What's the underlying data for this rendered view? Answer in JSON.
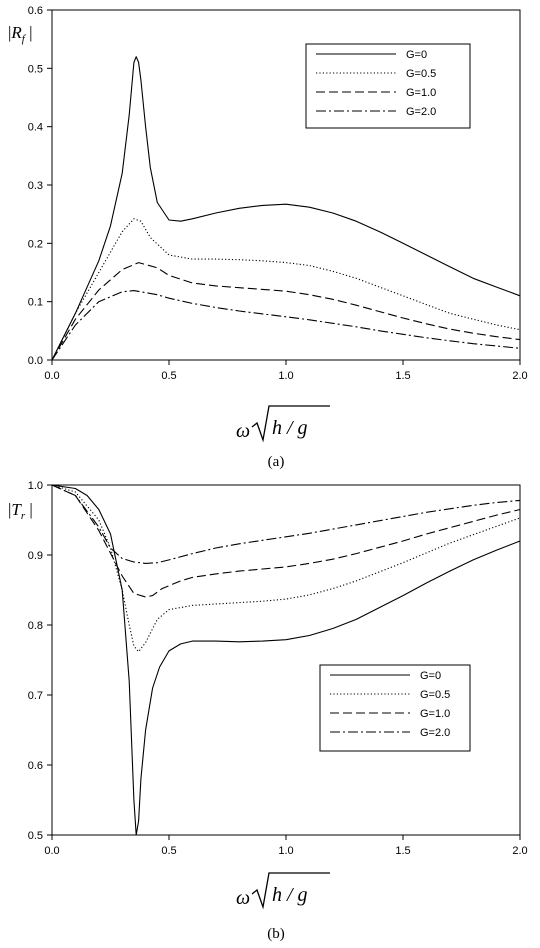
{
  "chart_data": [
    {
      "type": "line",
      "panel_caption": "(a)",
      "ylabel": "|R_f|",
      "xlabel": "ω√(h/g)",
      "xlim": [
        0.0,
        2.0
      ],
      "ylim": [
        0.0,
        0.6
      ],
      "xticks": [
        "0.0",
        "0.5",
        "1.0",
        "1.5",
        "2.0"
      ],
      "yticks": [
        "0.0",
        "0.1",
        "0.2",
        "0.3",
        "0.4",
        "0.5",
        "0.6"
      ],
      "legend_position": "top-right",
      "grid": false,
      "series": [
        {
          "name": "G=0",
          "style": "solid",
          "x": [
            0.0,
            0.1,
            0.2,
            0.25,
            0.3,
            0.33,
            0.35,
            0.36,
            0.37,
            0.38,
            0.4,
            0.42,
            0.45,
            0.5,
            0.55,
            0.6,
            0.7,
            0.8,
            0.9,
            1.0,
            1.1,
            1.2,
            1.3,
            1.4,
            1.5,
            1.6,
            1.7,
            1.8,
            1.9,
            2.0
          ],
          "y": [
            0.0,
            0.08,
            0.17,
            0.23,
            0.32,
            0.42,
            0.51,
            0.52,
            0.51,
            0.48,
            0.4,
            0.33,
            0.27,
            0.24,
            0.238,
            0.242,
            0.252,
            0.26,
            0.265,
            0.267,
            0.262,
            0.252,
            0.238,
            0.22,
            0.2,
            0.18,
            0.16,
            0.14,
            0.125,
            0.11
          ]
        },
        {
          "name": "G=0.5",
          "style": "dotted",
          "x": [
            0.0,
            0.1,
            0.2,
            0.3,
            0.35,
            0.38,
            0.42,
            0.5,
            0.6,
            0.7,
            0.8,
            0.9,
            1.0,
            1.1,
            1.2,
            1.3,
            1.4,
            1.5,
            1.6,
            1.7,
            1.8,
            1.9,
            2.0
          ],
          "y": [
            0.0,
            0.08,
            0.15,
            0.22,
            0.242,
            0.238,
            0.21,
            0.18,
            0.173,
            0.173,
            0.172,
            0.17,
            0.167,
            0.162,
            0.152,
            0.14,
            0.125,
            0.11,
            0.095,
            0.08,
            0.07,
            0.06,
            0.052
          ]
        },
        {
          "name": "G=1.0",
          "style": "dashed",
          "x": [
            0.0,
            0.1,
            0.2,
            0.3,
            0.37,
            0.45,
            0.5,
            0.6,
            0.7,
            0.8,
            0.9,
            1.0,
            1.1,
            1.2,
            1.3,
            1.4,
            1.5,
            1.6,
            1.7,
            1.8,
            1.9,
            2.0
          ],
          "y": [
            0.0,
            0.07,
            0.12,
            0.155,
            0.167,
            0.158,
            0.145,
            0.132,
            0.127,
            0.124,
            0.121,
            0.118,
            0.112,
            0.104,
            0.094,
            0.083,
            0.072,
            0.062,
            0.053,
            0.046,
            0.04,
            0.035
          ]
        },
        {
          "name": "G=2.0",
          "style": "dashdot",
          "x": [
            0.0,
            0.1,
            0.2,
            0.3,
            0.35,
            0.45,
            0.5,
            0.6,
            0.7,
            0.8,
            0.9,
            1.0,
            1.1,
            1.2,
            1.3,
            1.4,
            1.5,
            1.6,
            1.7,
            1.8,
            1.9,
            2.0
          ],
          "y": [
            0.0,
            0.06,
            0.1,
            0.117,
            0.119,
            0.112,
            0.106,
            0.097,
            0.09,
            0.084,
            0.079,
            0.074,
            0.069,
            0.063,
            0.057,
            0.05,
            0.044,
            0.038,
            0.033,
            0.028,
            0.024,
            0.02
          ]
        }
      ]
    },
    {
      "type": "line",
      "panel_caption": "(b)",
      "ylabel": "|T_r|",
      "xlabel": "ω√(h/g)",
      "xlim": [
        0.0,
        2.0
      ],
      "ylim": [
        0.5,
        1.0
      ],
      "xticks": [
        "0.0",
        "0.5",
        "1.0",
        "1.5",
        "2.0"
      ],
      "yticks": [
        "0.5",
        "0.6",
        "0.7",
        "0.8",
        "0.9",
        "1.0"
      ],
      "legend_position": "bottom-right",
      "grid": false,
      "series": [
        {
          "name": "G=0",
          "style": "solid",
          "x": [
            0.0,
            0.1,
            0.15,
            0.2,
            0.25,
            0.3,
            0.33,
            0.35,
            0.36,
            0.37,
            0.38,
            0.4,
            0.43,
            0.46,
            0.5,
            0.55,
            0.6,
            0.7,
            0.8,
            0.9,
            1.0,
            1.1,
            1.2,
            1.3,
            1.4,
            1.5,
            1.6,
            1.7,
            1.8,
            1.9,
            2.0
          ],
          "y": [
            1.0,
            0.995,
            0.985,
            0.965,
            0.93,
            0.85,
            0.72,
            0.55,
            0.5,
            0.52,
            0.58,
            0.65,
            0.71,
            0.74,
            0.763,
            0.773,
            0.777,
            0.777,
            0.776,
            0.777,
            0.779,
            0.785,
            0.795,
            0.808,
            0.825,
            0.842,
            0.86,
            0.877,
            0.893,
            0.907,
            0.92
          ]
        },
        {
          "name": "G=0.5",
          "style": "dotted",
          "x": [
            0.0,
            0.1,
            0.2,
            0.25,
            0.3,
            0.33,
            0.35,
            0.37,
            0.4,
            0.45,
            0.5,
            0.6,
            0.7,
            0.8,
            0.9,
            1.0,
            1.1,
            1.2,
            1.3,
            1.4,
            1.5,
            1.6,
            1.7,
            1.8,
            1.9,
            2.0
          ],
          "y": [
            1.0,
            0.99,
            0.95,
            0.91,
            0.85,
            0.8,
            0.77,
            0.762,
            0.775,
            0.808,
            0.822,
            0.828,
            0.83,
            0.832,
            0.834,
            0.837,
            0.843,
            0.852,
            0.863,
            0.876,
            0.889,
            0.903,
            0.917,
            0.929,
            0.941,
            0.953
          ]
        },
        {
          "name": "G=1.0",
          "style": "dashed",
          "x": [
            0.0,
            0.1,
            0.2,
            0.3,
            0.35,
            0.4,
            0.43,
            0.47,
            0.55,
            0.6,
            0.7,
            0.8,
            0.9,
            1.0,
            1.1,
            1.2,
            1.3,
            1.4,
            1.5,
            1.6,
            1.7,
            1.8,
            1.9,
            2.0
          ],
          "y": [
            1.0,
            0.985,
            0.935,
            0.87,
            0.845,
            0.84,
            0.842,
            0.852,
            0.863,
            0.868,
            0.873,
            0.877,
            0.88,
            0.883,
            0.888,
            0.894,
            0.902,
            0.911,
            0.92,
            0.93,
            0.939,
            0.948,
            0.957,
            0.965
          ]
        },
        {
          "name": "G=2.0",
          "style": "dashdot",
          "x": [
            0.0,
            0.1,
            0.2,
            0.25,
            0.3,
            0.35,
            0.4,
            0.45,
            0.5,
            0.6,
            0.7,
            0.8,
            0.9,
            1.0,
            1.1,
            1.2,
            1.3,
            1.4,
            1.5,
            1.6,
            1.7,
            1.8,
            1.9,
            2.0
          ],
          "y": [
            1.0,
            0.985,
            0.94,
            0.91,
            0.895,
            0.89,
            0.888,
            0.889,
            0.893,
            0.902,
            0.91,
            0.916,
            0.921,
            0.926,
            0.931,
            0.937,
            0.943,
            0.949,
            0.955,
            0.961,
            0.966,
            0.971,
            0.975,
            0.978
          ]
        }
      ]
    }
  ]
}
